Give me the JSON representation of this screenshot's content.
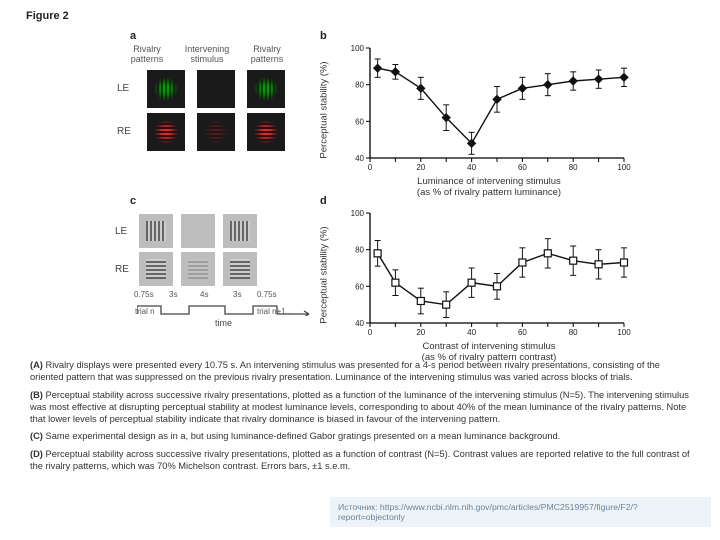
{
  "figure_label": "Figure 2",
  "panel_labels": {
    "a": "a",
    "b": "b",
    "c": "c",
    "d": "d"
  },
  "panel_a": {
    "col_headers": [
      "Rivalry patterns",
      "Intervening stimulus",
      "Rivalry patterns"
    ],
    "row_labels": [
      "LE",
      "RE"
    ],
    "colors": {
      "box_bg": "#1a1a1a",
      "green": "#2bbf2b",
      "red": "#d84040"
    }
  },
  "panel_c": {
    "row_labels": [
      "LE",
      "RE"
    ],
    "durations": [
      "0.75s",
      "3s",
      "4s",
      "3s",
      "0.75s"
    ],
    "trial_labels": [
      "trial n",
      "trial n+1..."
    ],
    "time_label": "time",
    "box_bg": "#bdbdbd"
  },
  "chart_b": {
    "type": "line",
    "title": null,
    "ylabel": "Perceptual stability (%)",
    "xlabel": "Luminance of intervening stimulus\n(as % of rivalry pattern luminance)",
    "xlim": [
      0,
      100
    ],
    "ylim": [
      40,
      100
    ],
    "xticks": [
      0,
      10,
      20,
      30,
      40,
      50,
      60,
      70,
      80,
      90,
      100
    ],
    "yticks": [
      40,
      60,
      80,
      100
    ],
    "x": [
      3,
      10,
      20,
      30,
      40,
      50,
      60,
      70,
      80,
      90,
      100
    ],
    "y": [
      89,
      87,
      78,
      62,
      48,
      72,
      78,
      80,
      82,
      83,
      84
    ],
    "err": [
      5,
      4,
      6,
      7,
      6,
      7,
      6,
      6,
      5,
      5,
      5
    ],
    "marker": "diamond-filled",
    "line_color": "#111111",
    "marker_fill": "#111111",
    "axis_color": "#000000",
    "tick_fontsize": 8
  },
  "chart_d": {
    "type": "line",
    "ylabel": "Perceptual stability (%)",
    "xlabel": "Contrast of intervening stimulus\n(as % of rivalry pattern contrast)",
    "xlim": [
      0,
      100
    ],
    "ylim": [
      40,
      100
    ],
    "xticks": [
      0,
      10,
      20,
      30,
      40,
      50,
      60,
      70,
      80,
      90,
      100
    ],
    "yticks": [
      40,
      60,
      80,
      100
    ],
    "x": [
      3,
      10,
      20,
      30,
      40,
      50,
      60,
      70,
      80,
      90,
      100
    ],
    "y": [
      78,
      62,
      52,
      50,
      62,
      60,
      73,
      78,
      74,
      72,
      73
    ],
    "err": [
      7,
      7,
      7,
      7,
      8,
      7,
      8,
      8,
      8,
      8,
      8
    ],
    "marker": "square-open",
    "line_color": "#111111",
    "marker_fill": "#ffffff",
    "axis_color": "#000000",
    "tick_fontsize": 8
  },
  "captions": {
    "A": "Rivalry displays were presented every 10.75 s. An intervening stimulus was presented for a 4-s period between rivalry presentations, consisting of the oriented pattern that was suppressed on the previous rivalry presentation. Luminance of the intervening stimulus was varied across blocks of trials.",
    "B": "Perceptual stability across successive rivalry presentations, plotted as a function of the luminance of the intervening stimulus (N=5). The intervening stimulus was most effective at disrupting perceptual stability at modest luminance levels, corresponding to about 40% of the mean luminance of the rivalry patterns. Note that lower levels of perceptual stability indicate that rivalry dominance is biased in favour of the intervening pattern.",
    "C": "Same experimental design as in a, but using luminance-defined Gabor gratings presented on a mean luminance background.",
    "D": "Perceptual stability across successive rivalry presentations, plotted as a function of contrast (N=5). Contrast values are reported relative to the full contrast of the rivalry patterns, which was 70% Michelson contrast. Errors bars, ±1 s.e.m."
  },
  "source": {
    "label": "Источник: ",
    "url": "https://www.ncbi.nlm.nih.gov/pmc/articles/PMC2519957/figure/F2/?report=objectonly"
  }
}
